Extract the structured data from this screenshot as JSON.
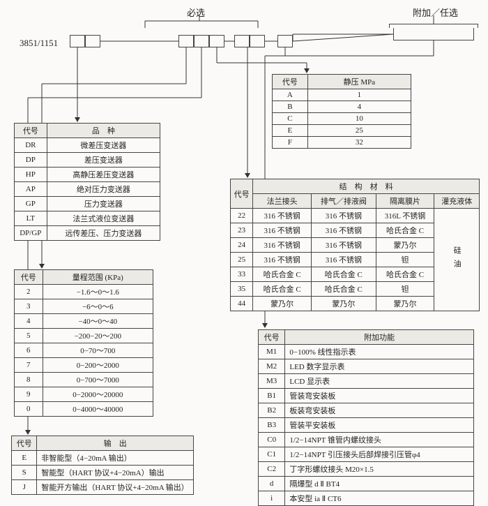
{
  "headers": {
    "required": "必选",
    "optional": "附加／任选"
  },
  "model": "3851/1151",
  "t1": {
    "cols": [
      "代号",
      "品　种"
    ],
    "rows": [
      [
        "DR",
        "微差压变送器"
      ],
      [
        "DP",
        "差压变送器"
      ],
      [
        "HP",
        "高静压差压变送器"
      ],
      [
        "AP",
        "绝对压力变送器"
      ],
      [
        "GP",
        "压力变送器"
      ],
      [
        "LT",
        "法兰式液位变送器"
      ],
      [
        "DP/GP",
        "远传差压、压力变送器"
      ]
    ]
  },
  "t2": {
    "cols": [
      "代号",
      "量程范围 (KPa)"
    ],
    "rows": [
      [
        "2",
        "−1.6～0～1.6"
      ],
      [
        "3",
        "−6～0～6"
      ],
      [
        "4",
        "−40～0～40"
      ],
      [
        "5",
        "−200−20～200"
      ],
      [
        "6",
        "0−70～700"
      ],
      [
        "7",
        "0−200～2000"
      ],
      [
        "8",
        "0−700～7000"
      ],
      [
        "9",
        "0−2000～20000"
      ],
      [
        "0",
        "0−4000～40000"
      ]
    ]
  },
  "t3": {
    "cols": [
      "代号",
      "输　出"
    ],
    "rows": [
      [
        "E",
        "非智能型（4−20mA 输出）"
      ],
      [
        "S",
        "智能型（HART 协议+4−20mA）输出"
      ],
      [
        "J",
        "智能开方输出（HART 协议+4−20mA 输出）"
      ]
    ]
  },
  "t4": {
    "cols": [
      "代号",
      "静压 MPa"
    ],
    "rows": [
      [
        "A",
        "1"
      ],
      [
        "B",
        "4"
      ],
      [
        "C",
        "10"
      ],
      [
        "E",
        "25"
      ],
      [
        "F",
        "32"
      ]
    ]
  },
  "t5": {
    "title": "结　构　材　料",
    "code": "代号",
    "sub": [
      "法兰接头",
      "排气／排液阀",
      "隔离膜片",
      "灌充液体"
    ],
    "rows": [
      [
        "22",
        "316 不锈钢",
        "316 不锈钢",
        "316L 不锈钢"
      ],
      [
        "23",
        "316 不锈钢",
        "316 不锈钢",
        "哈氏合金 C"
      ],
      [
        "24",
        "316 不锈钢",
        "316 不锈钢",
        "蒙乃尔"
      ],
      [
        "25",
        "316 不锈钢",
        "316 不锈钢",
        "钽"
      ],
      [
        "33",
        "哈氏合金 C",
        "哈氏合金 C",
        "哈氏合金 C"
      ],
      [
        "35",
        "哈氏合金 C",
        "哈氏合金 C",
        "钽"
      ],
      [
        "44",
        "蒙乃尔",
        "蒙乃尔",
        "蒙乃尔"
      ]
    ],
    "fill": "硅油"
  },
  "t6": {
    "cols": [
      "代号",
      "附加功能"
    ],
    "rows": [
      [
        "M1",
        "0−100% 线性指示表"
      ],
      [
        "M2",
        "LED 数字显示表"
      ],
      [
        "M3",
        "LCD 显示表"
      ],
      [
        "B1",
        "管装弯安装板"
      ],
      [
        "B2",
        "板装弯安装板"
      ],
      [
        "B3",
        "管装平安装板"
      ],
      [
        "C0",
        "1/2−14NPT 锥管内螺纹接头"
      ],
      [
        "C1",
        "1/2−14NPT 引压接头后部焊接引压管φ4"
      ],
      [
        "C2",
        "丁字形螺纹接头 M20×1.5"
      ],
      [
        "d",
        "隔爆型 d Ⅱ BT4"
      ],
      [
        "i",
        "本安型 ia Ⅱ CT6"
      ]
    ]
  },
  "style": {
    "border_color": "#444",
    "header_bg": "#eceae5",
    "bg": "#fbfaf8",
    "font_size": 11
  }
}
